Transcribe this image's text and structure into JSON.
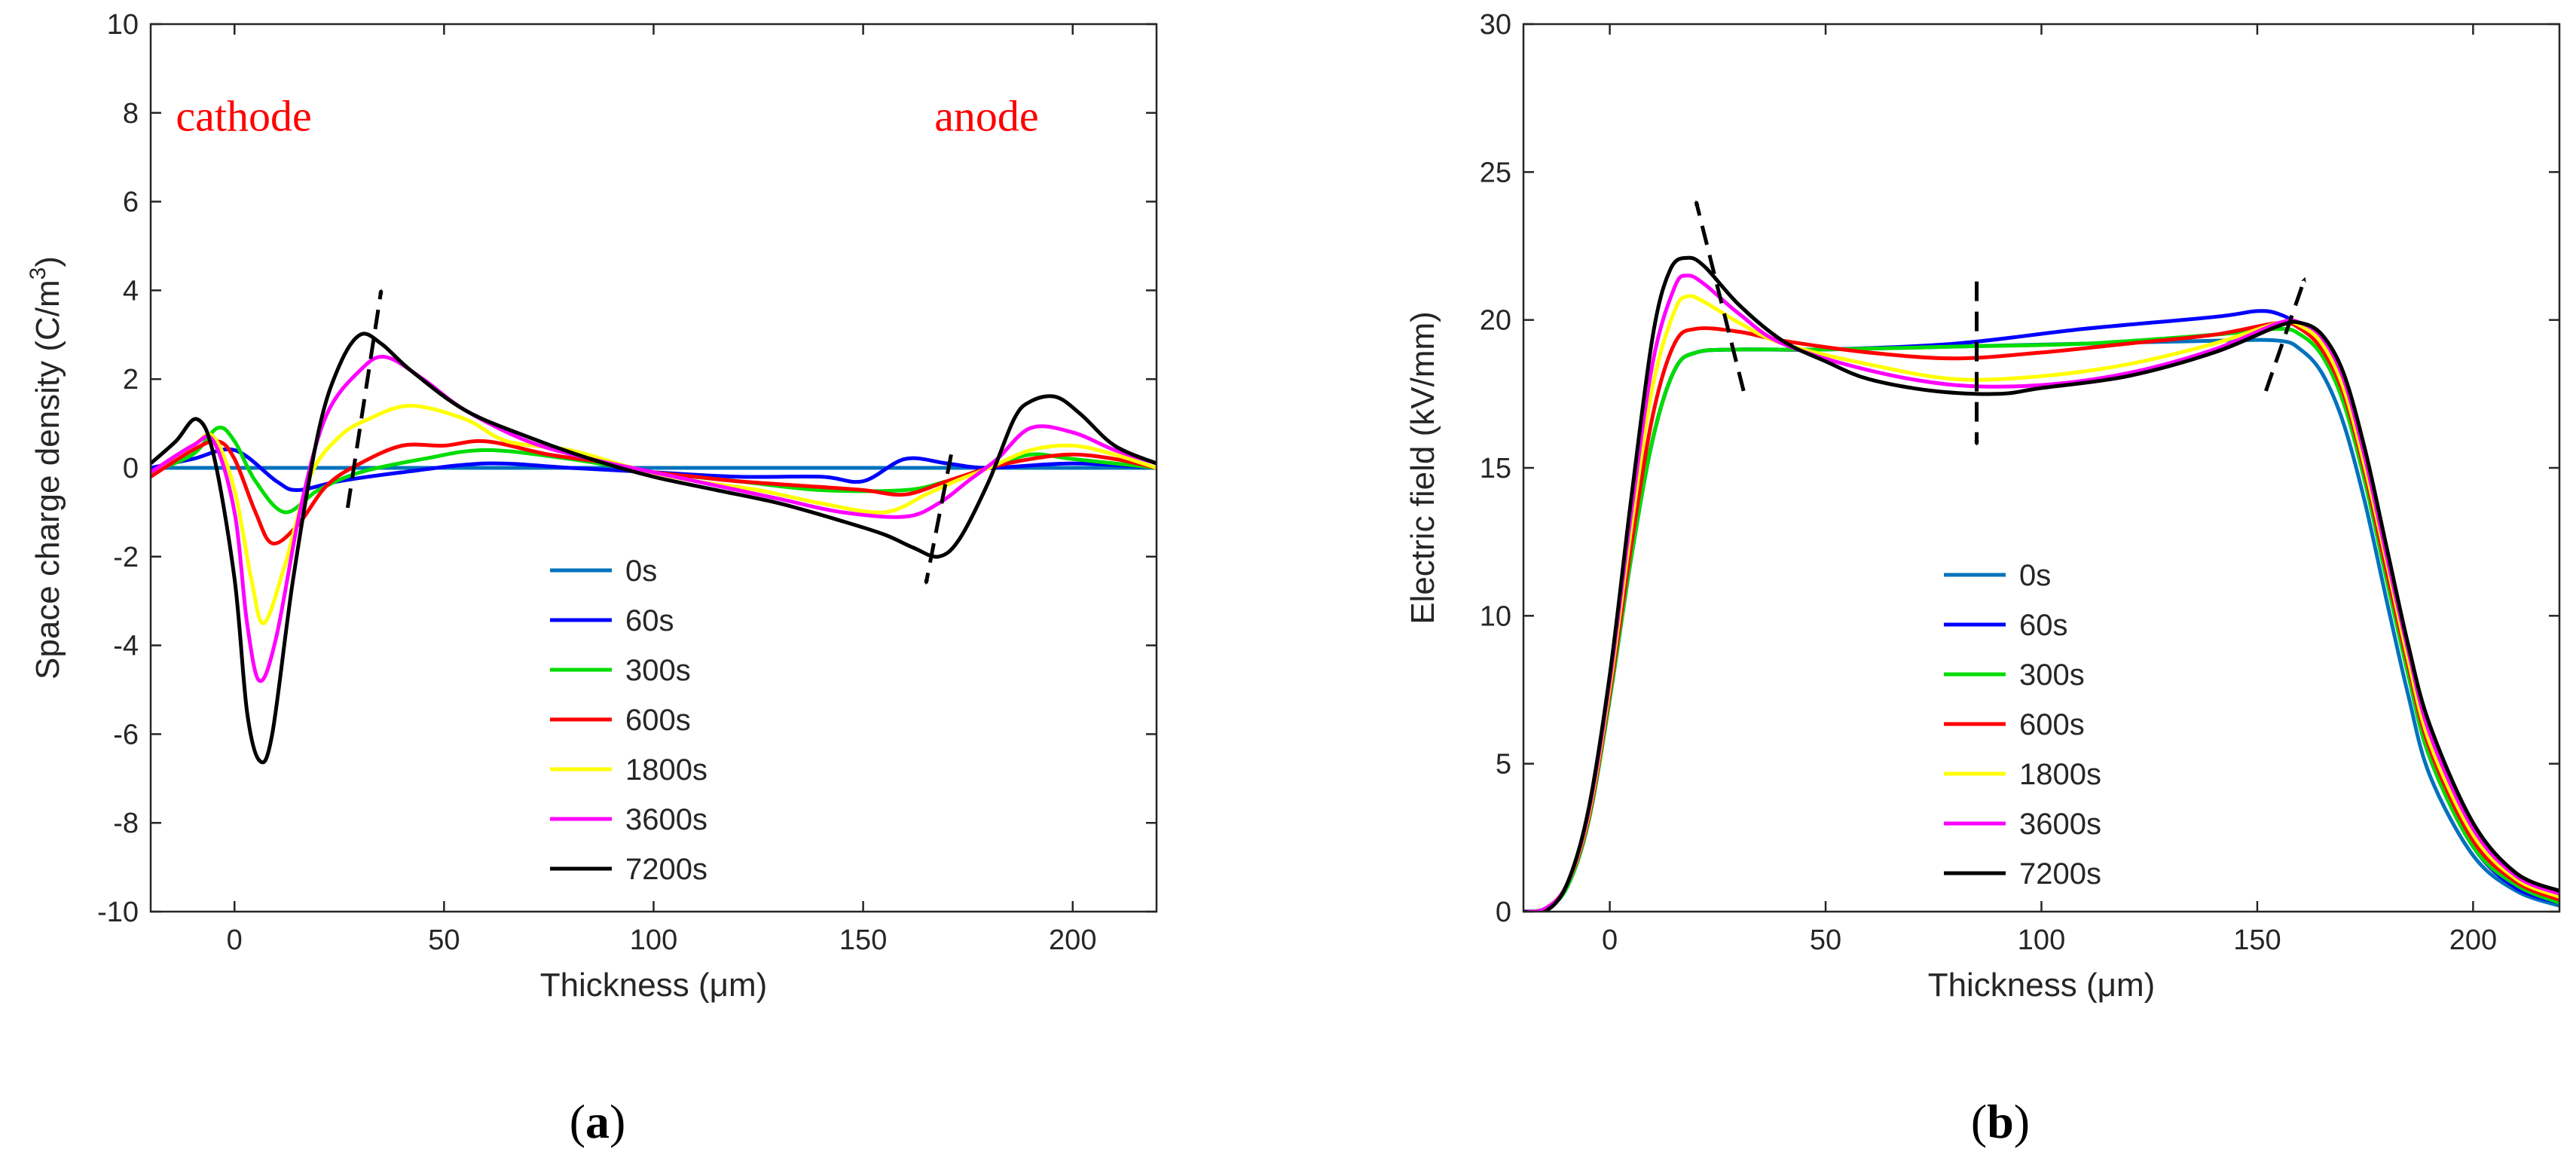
{
  "chart_data": [
    {
      "id": "a",
      "type": "line",
      "panel_label": "(a)",
      "panel_letter": "a",
      "xlabel": "Thickness (μm)",
      "ylabel": "Space charge density (C/m",
      "ylabel_sup": "3",
      "ylabel_close": ")",
      "xlim": [
        -20,
        220
      ],
      "ylim": [
        -10,
        10
      ],
      "xticks": [
        0,
        50,
        100,
        150,
        200
      ],
      "xtick_labels": [
        "0",
        "50",
        "100",
        "150",
        "200"
      ],
      "yticks": [
        -10,
        -8,
        -6,
        -4,
        -2,
        0,
        2,
        4,
        6,
        8,
        10
      ],
      "ytick_labels": [
        "-10",
        "-8",
        "-6",
        "-4",
        "-2",
        "0",
        "2",
        "4",
        "6",
        "8",
        "10"
      ],
      "annotations": [
        {
          "text": "cathode",
          "x": -14,
          "y": 7.6,
          "color": "#ff0000"
        },
        {
          "text": "anode",
          "x": 167,
          "y": 7.6,
          "color": "#ff0000"
        }
      ],
      "trend_arrows": [
        {
          "from": [
            27,
            -0.9
          ],
          "to": [
            35,
            4.0
          ]
        },
        {
          "from": [
            171,
            0.3
          ],
          "to": [
            165,
            -2.6
          ]
        }
      ],
      "legend_position": "center",
      "series": [
        {
          "name": "0s",
          "color": "#0072bd",
          "x": [
            -20,
            220
          ],
          "y": [
            0,
            0
          ]
        },
        {
          "name": "60s",
          "color": "#0000ff",
          "x": [
            -20,
            -10,
            0,
            10,
            15,
            25,
            40,
            60,
            80,
            100,
            120,
            140,
            150,
            160,
            170,
            180,
            200,
            220
          ],
          "y": [
            0,
            0.2,
            0.4,
            -0.3,
            -0.5,
            -0.3,
            -0.1,
            0.1,
            0,
            -0.1,
            -0.2,
            -0.2,
            -0.3,
            0.2,
            0.1,
            0,
            0.1,
            0
          ]
        },
        {
          "name": "300s",
          "color": "#00dd00",
          "x": [
            -20,
            -10,
            -4,
            0,
            5,
            12,
            20,
            30,
            45,
            60,
            80,
            100,
            120,
            140,
            160,
            170,
            180,
            190,
            200,
            220
          ],
          "y": [
            -0.1,
            0.3,
            0.9,
            0.6,
            -0.3,
            -1.0,
            -0.5,
            -0.1,
            0.2,
            0.4,
            0.2,
            -0.1,
            -0.3,
            -0.5,
            -0.5,
            -0.3,
            0,
            0.3,
            0.2,
            0
          ]
        },
        {
          "name": "600s",
          "color": "#ff0000",
          "x": [
            -20,
            -10,
            -4,
            0,
            5,
            9,
            15,
            22,
            30,
            40,
            50,
            60,
            75,
            90,
            100,
            110,
            120,
            135,
            150,
            160,
            170,
            180,
            190,
            200,
            210,
            220
          ],
          "y": [
            -0.2,
            0.4,
            0.6,
            0.2,
            -1.0,
            -1.7,
            -1.3,
            -0.4,
            0.1,
            0.5,
            0.5,
            0.6,
            0.3,
            0.1,
            -0.1,
            -0.2,
            -0.3,
            -0.4,
            -0.5,
            -0.6,
            -0.3,
            0,
            0.2,
            0.3,
            0.2,
            0
          ]
        },
        {
          "name": "1800s",
          "color": "#ffff00",
          "x": [
            -20,
            -10,
            -5,
            0,
            4,
            7,
            12,
            18,
            25,
            32,
            42,
            55,
            65,
            80,
            95,
            110,
            125,
            140,
            155,
            165,
            172,
            180,
            190,
            200,
            210,
            220
          ],
          "y": [
            -0.1,
            0.5,
            0.7,
            -0.5,
            -2.5,
            -3.5,
            -2.2,
            -0.2,
            0.7,
            1.1,
            1.4,
            1.1,
            0.6,
            0.4,
            0,
            -0.3,
            -0.5,
            -0.8,
            -1.0,
            -0.6,
            -0.3,
            0,
            0.4,
            0.5,
            0.3,
            0
          ]
        },
        {
          "name": "3600s",
          "color": "#ff00ff",
          "x": [
            -20,
            -10,
            -5,
            0,
            3,
            6,
            10,
            16,
            22,
            30,
            36,
            45,
            55,
            70,
            85,
            100,
            115,
            130,
            145,
            160,
            168,
            175,
            182,
            190,
            200,
            210,
            220
          ],
          "y": [
            -0.1,
            0.5,
            0.6,
            -1.0,
            -3.5,
            -4.8,
            -3.8,
            -0.8,
            1.2,
            2.2,
            2.5,
            2.0,
            1.3,
            0.6,
            0.2,
            -0.1,
            -0.4,
            -0.7,
            -1.0,
            -1.1,
            -0.8,
            -0.3,
            0.2,
            0.9,
            0.8,
            0.4,
            0.1
          ]
        },
        {
          "name": "7200s",
          "color": "#000000",
          "x": [
            -20,
            -14,
            -9,
            -5,
            0,
            3,
            6,
            9,
            14,
            20,
            25,
            30,
            35,
            42,
            55,
            70,
            85,
            100,
            115,
            130,
            145,
            155,
            162,
            168,
            173,
            180,
            186,
            190,
            196,
            202,
            210,
            220
          ],
          "y": [
            0.1,
            0.6,
            1.1,
            0.3,
            -2.5,
            -5.5,
            -6.6,
            -6.0,
            -2.5,
            0.8,
            2.3,
            3.0,
            2.8,
            2.2,
            1.3,
            0.7,
            0.2,
            -0.2,
            -0.5,
            -0.8,
            -1.2,
            -1.5,
            -1.8,
            -2.0,
            -1.6,
            -0.3,
            1.1,
            1.5,
            1.6,
            1.2,
            0.5,
            0.1
          ]
        }
      ]
    },
    {
      "id": "b",
      "type": "line",
      "panel_label": "(b)",
      "panel_letter": "b",
      "xlabel": "Thickness (μm)",
      "ylabel": "Electric field (kV/mm)",
      "xlim": [
        -20,
        220
      ],
      "ylim": [
        0,
        30
      ],
      "xticks": [
        0,
        50,
        100,
        150,
        200
      ],
      "xtick_labels": [
        "0",
        "50",
        "100",
        "150",
        "200"
      ],
      "yticks": [
        0,
        5,
        10,
        15,
        20,
        25,
        30
      ],
      "ytick_labels": [
        "0",
        "5",
        "10",
        "15",
        "20",
        "25",
        "30"
      ],
      "trend_arrows": [
        {
          "from": [
            31,
            17.6
          ],
          "to": [
            20,
            24.0
          ]
        },
        {
          "from": [
            85,
            21.3
          ],
          "to": [
            85,
            15.8
          ]
        },
        {
          "from": [
            152,
            17.6
          ],
          "to": [
            161,
            21.4
          ]
        }
      ],
      "legend_position": "center",
      "series": [
        {
          "name": "0s",
          "color": "#0072bd",
          "x": [
            -20,
            -15,
            -10,
            -5,
            0,
            5,
            10,
            15,
            20,
            30,
            50,
            80,
            110,
            140,
            155,
            160,
            165,
            170,
            175,
            180,
            185,
            190,
            200,
            210,
            220
          ],
          "y": [
            0,
            0.1,
            0.8,
            3.0,
            7.2,
            12.0,
            16.0,
            18.3,
            18.9,
            19.0,
            19.0,
            19.1,
            19.2,
            19.3,
            19.3,
            19.0,
            18.2,
            16.5,
            13.8,
            10.5,
            7.3,
            4.6,
            1.9,
            0.7,
            0.2
          ]
        },
        {
          "name": "60s",
          "color": "#0000ff",
          "x": [
            -20,
            -15,
            -10,
            -5,
            0,
            5,
            10,
            15,
            20,
            30,
            50,
            80,
            110,
            140,
            150,
            155,
            160,
            165,
            170,
            175,
            180,
            185,
            190,
            200,
            210,
            220
          ],
          "y": [
            0,
            0.1,
            0.8,
            3.0,
            7.2,
            12.0,
            16.0,
            18.3,
            18.9,
            19.0,
            19.0,
            19.2,
            19.7,
            20.1,
            20.3,
            20.2,
            19.8,
            19.0,
            17.3,
            14.6,
            11.3,
            8.0,
            5.2,
            2.2,
            0.8,
            0.3
          ]
        },
        {
          "name": "300s",
          "color": "#00dd00",
          "x": [
            -20,
            -15,
            -10,
            -5,
            0,
            5,
            10,
            15,
            20,
            30,
            50,
            80,
            110,
            140,
            155,
            160,
            165,
            170,
            175,
            180,
            185,
            190,
            200,
            210,
            220
          ],
          "y": [
            0,
            0.1,
            0.8,
            3.0,
            7.2,
            12.0,
            16.0,
            18.3,
            18.9,
            19.0,
            19.0,
            19.1,
            19.2,
            19.5,
            19.7,
            19.5,
            18.8,
            17.2,
            14.5,
            11.2,
            8.0,
            5.2,
            2.2,
            0.9,
            0.3
          ]
        },
        {
          "name": "600s",
          "color": "#ff0000",
          "x": [
            -20,
            -15,
            -10,
            -5,
            0,
            5,
            10,
            15,
            20,
            30,
            40,
            60,
            80,
            100,
            120,
            140,
            155,
            160,
            165,
            170,
            175,
            180,
            185,
            190,
            200,
            210,
            220
          ],
          "y": [
            0,
            0.1,
            0.9,
            3.1,
            7.4,
            12.4,
            16.8,
            19.2,
            19.7,
            19.6,
            19.3,
            18.9,
            18.7,
            18.9,
            19.2,
            19.5,
            19.9,
            19.7,
            19.0,
            17.5,
            14.8,
            11.5,
            8.3,
            5.5,
            2.4,
            1.0,
            0.4
          ]
        },
        {
          "name": "1800s",
          "color": "#ffff00",
          "x": [
            -20,
            -15,
            -10,
            -5,
            0,
            5,
            10,
            15,
            18,
            22,
            30,
            40,
            60,
            80,
            100,
            120,
            140,
            155,
            160,
            165,
            170,
            175,
            180,
            185,
            190,
            200,
            210,
            220
          ],
          "y": [
            0,
            0.1,
            0.9,
            3.2,
            7.6,
            13.0,
            17.8,
            20.3,
            20.8,
            20.6,
            19.9,
            19.2,
            18.5,
            18.0,
            18.1,
            18.5,
            19.2,
            19.9,
            19.8,
            19.2,
            17.7,
            15.0,
            11.8,
            8.5,
            5.7,
            2.6,
            1.1,
            0.5
          ]
        },
        {
          "name": "3600s",
          "color": "#ff00ff",
          "x": [
            -20,
            -15,
            -10,
            -5,
            0,
            5,
            10,
            15,
            18,
            22,
            30,
            40,
            60,
            80,
            100,
            120,
            140,
            155,
            160,
            165,
            170,
            175,
            180,
            185,
            190,
            200,
            210,
            220
          ],
          "y": [
            0,
            0.1,
            0.9,
            3.3,
            7.8,
            13.5,
            18.6,
            21.1,
            21.5,
            21.2,
            20.2,
            19.2,
            18.3,
            17.8,
            17.8,
            18.2,
            19.0,
            19.9,
            19.9,
            19.4,
            18.0,
            15.3,
            12.0,
            8.8,
            6.0,
            2.8,
            1.2,
            0.6
          ]
        },
        {
          "name": "7200s",
          "color": "#000000",
          "x": [
            -20,
            -15,
            -10,
            -5,
            0,
            5,
            10,
            14,
            18,
            22,
            30,
            40,
            50,
            60,
            75,
            90,
            100,
            120,
            140,
            155,
            160,
            165,
            170,
            175,
            180,
            185,
            190,
            200,
            210,
            220
          ],
          "y": [
            0,
            0,
            0.9,
            3.4,
            8.0,
            14.0,
            19.5,
            21.7,
            22.1,
            21.8,
            20.5,
            19.3,
            18.6,
            18.0,
            17.6,
            17.5,
            17.7,
            18.1,
            18.9,
            19.8,
            19.9,
            19.5,
            18.2,
            15.6,
            12.3,
            9.0,
            6.3,
            3.0,
            1.3,
            0.7
          ]
        }
      ]
    }
  ]
}
